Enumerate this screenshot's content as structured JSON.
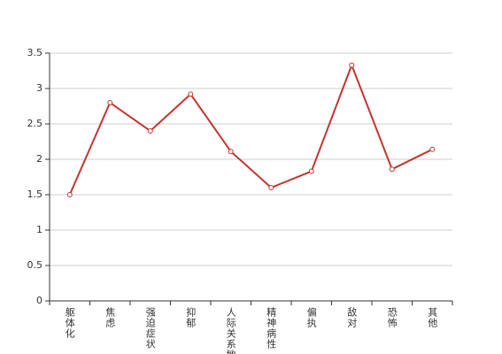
{
  "chart_data": {
    "type": "line",
    "categories": [
      "躯体化",
      "焦虑",
      "强迫症状",
      "抑郁",
      "人际关系敏感",
      "精神病性",
      "偏执",
      "敌对",
      "恐怖",
      "其他"
    ],
    "values": [
      1.5,
      2.8,
      2.4,
      2.92,
      2.11,
      1.6,
      1.83,
      3.33,
      1.86,
      2.14
    ],
    "color": "#c23531",
    "ylim": [
      0,
      3.5
    ],
    "yticks": [
      0,
      0.5,
      1,
      1.5,
      2,
      2.5,
      3,
      3.5
    ],
    "grid": true
  }
}
